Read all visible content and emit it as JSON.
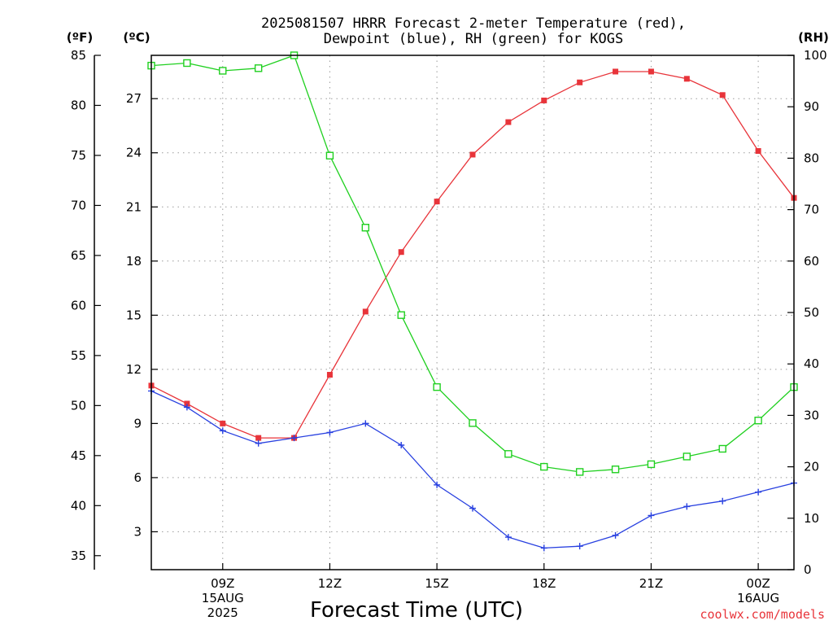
{
  "chart_data": {
    "type": "line",
    "title": [
      "2025081507 HRRR Forecast 2-meter Temperature (red),",
      "Dewpoint (blue), RH (green) for KOGS"
    ],
    "xlabel": "Forecast Time (UTC)",
    "credit": "coolwx.com/models",
    "left_outer_axis": {
      "unit": "(ºF)",
      "range": [
        33.6,
        85
      ],
      "ticks": [
        35,
        40,
        45,
        50,
        55,
        60,
        65,
        70,
        75,
        80,
        85
      ]
    },
    "left_inner_axis": {
      "unit": "(ºC)",
      "range": [
        0.9,
        29.4
      ],
      "ticks": [
        3,
        6,
        9,
        12,
        15,
        18,
        21,
        24,
        27
      ]
    },
    "right_axis": {
      "unit": "(RH)",
      "range": [
        0,
        100
      ],
      "ticks": [
        0,
        10,
        20,
        30,
        40,
        50,
        60,
        70,
        80,
        90,
        100
      ]
    },
    "x_range": [
      "2025-08-15T07:00Z",
      "2025-08-16T01:00Z"
    ],
    "x_ticks": [
      {
        "time": "2025-08-15T09:00Z",
        "lines": [
          "09Z",
          "15AUG",
          "2025"
        ]
      },
      {
        "time": "2025-08-15T12:00Z",
        "lines": [
          "12Z"
        ]
      },
      {
        "time": "2025-08-15T15:00Z",
        "lines": [
          "15Z"
        ]
      },
      {
        "time": "2025-08-15T18:00Z",
        "lines": [
          "18Z"
        ]
      },
      {
        "time": "2025-08-15T21:00Z",
        "lines": [
          "21Z"
        ]
      },
      {
        "time": "2025-08-16T00:00Z",
        "lines": [
          "00Z",
          "16AUG"
        ]
      }
    ],
    "grid": true,
    "x": [
      "2025-08-15T07:00Z",
      "2025-08-15T08:00Z",
      "2025-08-15T09:00Z",
      "2025-08-15T10:00Z",
      "2025-08-15T11:00Z",
      "2025-08-15T12:00Z",
      "2025-08-15T13:00Z",
      "2025-08-15T14:00Z",
      "2025-08-15T15:00Z",
      "2025-08-15T16:00Z",
      "2025-08-15T17:00Z",
      "2025-08-15T18:00Z",
      "2025-08-15T19:00Z",
      "2025-08-15T20:00Z",
      "2025-08-15T21:00Z",
      "2025-08-15T22:00Z",
      "2025-08-15T23:00Z",
      "2025-08-16T00:00Z",
      "2025-08-16T01:00Z"
    ],
    "series": [
      {
        "name": "Temperature",
        "axis": "celsius",
        "color": "#e8343a",
        "marker": "filled-square",
        "values": [
          11.1,
          10.1,
          9.0,
          8.2,
          8.2,
          11.7,
          15.2,
          18.5,
          21.3,
          23.9,
          25.7,
          26.9,
          27.9,
          28.5,
          28.5,
          28.1,
          27.2,
          24.1,
          21.5
        ]
      },
      {
        "name": "Dewpoint",
        "axis": "celsius",
        "color": "#2840e0",
        "marker": "plus",
        "values": [
          10.8,
          9.9,
          8.6,
          7.9,
          8.2,
          8.5,
          9.0,
          7.8,
          5.6,
          4.3,
          2.7,
          2.1,
          2.2,
          2.8,
          3.9,
          4.4,
          4.7,
          5.2,
          5.7
        ]
      },
      {
        "name": "RH",
        "axis": "rh",
        "color": "#20d020",
        "marker": "open-square",
        "values": [
          98,
          98.5,
          97,
          97.5,
          100,
          80.5,
          66.5,
          49.5,
          35.5,
          28.5,
          22.5,
          20,
          19,
          19.5,
          20.5,
          22,
          23.5,
          29,
          35.5
        ]
      }
    ]
  }
}
